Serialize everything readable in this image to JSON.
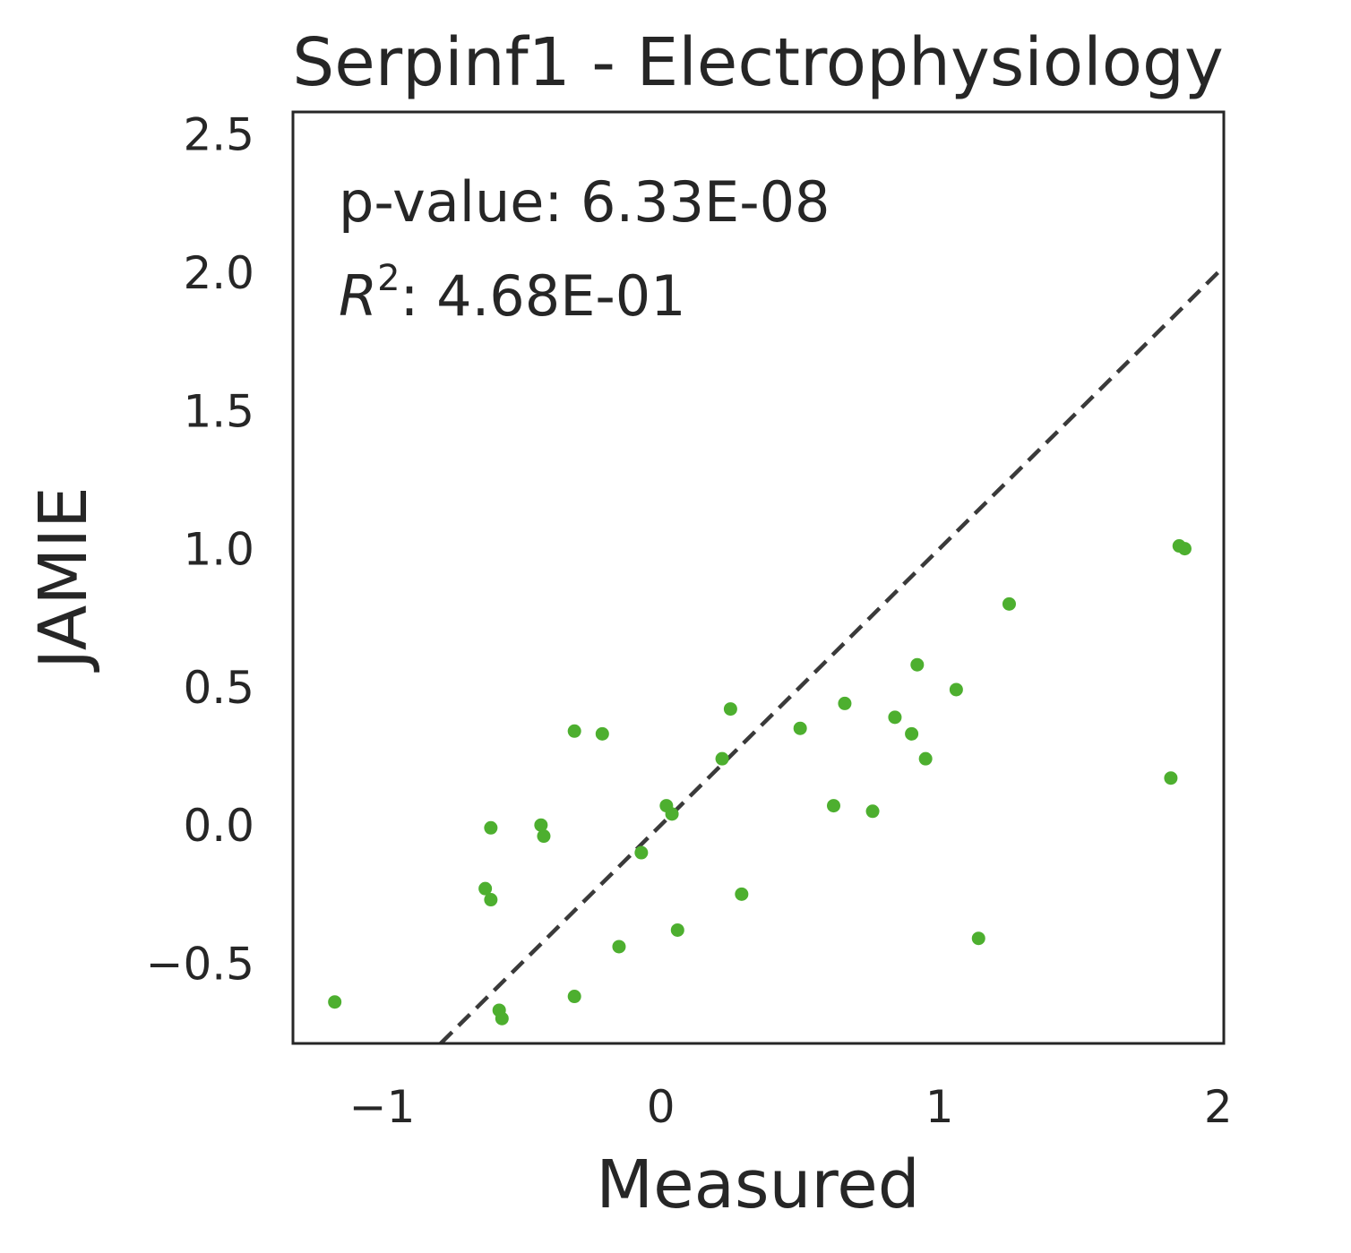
{
  "chart_data": {
    "type": "scatter",
    "title": "Serpinf1 - Electrophysiology",
    "xlabel": "Measured",
    "ylabel": "JAMIE",
    "xlim": [
      -1.32,
      2.02
    ],
    "ylim": [
      -0.79,
      2.58
    ],
    "xticks": [
      {
        "value": -1,
        "label": "−1"
      },
      {
        "value": 0,
        "label": "0"
      },
      {
        "value": 1,
        "label": "1"
      },
      {
        "value": 2,
        "label": "2"
      }
    ],
    "yticks": [
      {
        "value": -0.5,
        "label": "−0.5"
      },
      {
        "value": 0.0,
        "label": "0.0"
      },
      {
        "value": 0.5,
        "label": "0.5"
      },
      {
        "value": 1.0,
        "label": "1.0"
      },
      {
        "value": 1.5,
        "label": "1.5"
      },
      {
        "value": 2.0,
        "label": "2.0"
      },
      {
        "value": 2.5,
        "label": "2.5"
      }
    ],
    "grid": false,
    "reference_line": {
      "slope": 1,
      "intercept": 0,
      "style": "dashed",
      "color": "#3a3a3a"
    },
    "annotations": {
      "pvalue_label": "p-value: 6.33E-08",
      "r2_var": "R",
      "r2_exp": "2",
      "r2_value": ": 4.68E-01"
    },
    "point_color": "#4daf2f",
    "points": [
      {
        "x": -1.17,
        "y": -0.64
      },
      {
        "x": -0.63,
        "y": -0.23
      },
      {
        "x": -0.61,
        "y": -0.27
      },
      {
        "x": -0.61,
        "y": -0.01
      },
      {
        "x": -0.58,
        "y": -0.67
      },
      {
        "x": -0.57,
        "y": -0.7
      },
      {
        "x": -0.43,
        "y": 0.0
      },
      {
        "x": -0.42,
        "y": -0.04
      },
      {
        "x": -0.31,
        "y": 0.34
      },
      {
        "x": -0.31,
        "y": -0.62
      },
      {
        "x": -0.21,
        "y": 0.33
      },
      {
        "x": -0.15,
        "y": -0.44
      },
      {
        "x": -0.07,
        "y": -0.1
      },
      {
        "x": 0.02,
        "y": 0.07
      },
      {
        "x": 0.04,
        "y": 0.04
      },
      {
        "x": 0.06,
        "y": -0.38
      },
      {
        "x": 0.22,
        "y": 0.24
      },
      {
        "x": 0.25,
        "y": 0.42
      },
      {
        "x": 0.29,
        "y": -0.25
      },
      {
        "x": 0.5,
        "y": 0.35
      },
      {
        "x": 0.62,
        "y": 0.07
      },
      {
        "x": 0.66,
        "y": 0.44
      },
      {
        "x": 0.76,
        "y": 0.05
      },
      {
        "x": 0.84,
        "y": 0.39
      },
      {
        "x": 0.9,
        "y": 0.33
      },
      {
        "x": 0.92,
        "y": 0.58
      },
      {
        "x": 0.95,
        "y": 0.24
      },
      {
        "x": 1.06,
        "y": 0.49
      },
      {
        "x": 1.14,
        "y": -0.41
      },
      {
        "x": 1.25,
        "y": 0.8
      },
      {
        "x": 1.83,
        "y": 0.17
      },
      {
        "x": 1.86,
        "y": 1.01
      },
      {
        "x": 1.88,
        "y": 1.0
      }
    ]
  }
}
